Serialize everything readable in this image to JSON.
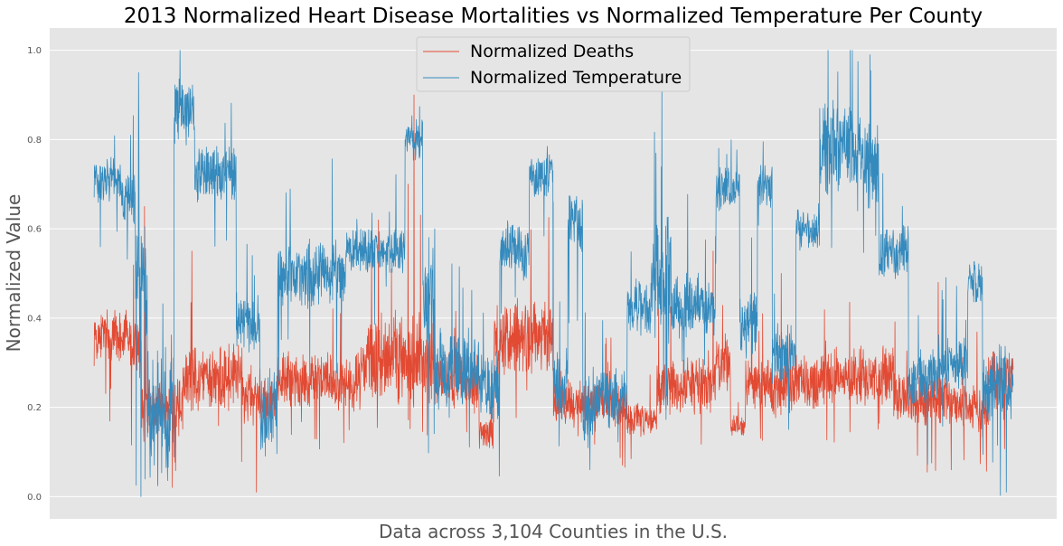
{
  "chart_data": {
    "type": "line",
    "title": "2013 Normalized Heart Disease Mortalities vs Normalized Temperature Per County",
    "xlabel": "Data across 3,104 Counties in the U.S.",
    "ylabel": "Normalized Value",
    "ylim": [
      -0.05,
      1.05
    ],
    "xlim": [
      -150,
      3250
    ],
    "n_points": 3104,
    "yticks": [
      "0.0",
      "0.2",
      "0.4",
      "0.6",
      "0.8",
      "1.0"
    ],
    "grid": true,
    "legend_position": "upper center",
    "style": "ggplot",
    "series": [
      {
        "name": "Normalized Deaths",
        "color": "#E24A33",
        "segments": [
          {
            "x": [
              0,
              120
            ],
            "level": 0.36,
            "noise": 0.05
          },
          {
            "x": [
              120,
              160
            ],
            "level": 0.33,
            "noise": 0.06
          },
          {
            "x": [
              160,
              300
            ],
            "level": 0.2,
            "noise": 0.05
          },
          {
            "x": [
              300,
              500
            ],
            "level": 0.27,
            "noise": 0.06
          },
          {
            "x": [
              500,
              620
            ],
            "level": 0.22,
            "noise": 0.05
          },
          {
            "x": [
              620,
              900
            ],
            "level": 0.26,
            "noise": 0.05
          },
          {
            "x": [
              900,
              1150
            ],
            "level": 0.31,
            "noise": 0.08
          },
          {
            "x": [
              1150,
              1300
            ],
            "level": 0.26,
            "noise": 0.05
          },
          {
            "x": [
              1300,
              1350
            ],
            "level": 0.14,
            "noise": 0.03
          },
          {
            "x": [
              1350,
              1550
            ],
            "level": 0.35,
            "noise": 0.07
          },
          {
            "x": [
              1550,
              1800
            ],
            "level": 0.21,
            "noise": 0.04
          },
          {
            "x": [
              1800,
              1900
            ],
            "level": 0.17,
            "noise": 0.03
          },
          {
            "x": [
              1900,
              2100
            ],
            "level": 0.25,
            "noise": 0.05
          },
          {
            "x": [
              2100,
              2150
            ],
            "level": 0.3,
            "noise": 0.05
          },
          {
            "x": [
              2150,
              2200
            ],
            "level": 0.16,
            "noise": 0.02
          },
          {
            "x": [
              2200,
              2450
            ],
            "level": 0.25,
            "noise": 0.05
          },
          {
            "x": [
              2450,
              2700
            ],
            "level": 0.27,
            "noise": 0.05
          },
          {
            "x": [
              2700,
              2900
            ],
            "level": 0.22,
            "noise": 0.05
          },
          {
            "x": [
              2900,
              3020
            ],
            "level": 0.2,
            "noise": 0.04
          },
          {
            "x": [
              3020,
              3104
            ],
            "level": 0.26,
            "noise": 0.05
          }
        ],
        "spikes": [
          [
            170,
            0.65
          ],
          [
            330,
            0.55
          ],
          [
            960,
            0.62
          ],
          [
            1060,
            0.7
          ],
          [
            1080,
            0.9
          ],
          [
            1550,
            0.66
          ],
          [
            2090,
            0.55
          ],
          [
            2220,
            0.58
          ],
          [
            2320,
            0.5
          ],
          [
            2850,
            0.48
          ]
        ]
      },
      {
        "name": "Normalized Temperature",
        "color": "#348ABD",
        "segments": [
          {
            "x": [
              0,
              90
            ],
            "level": 0.71,
            "noise": 0.04
          },
          {
            "x": [
              90,
              140
            ],
            "level": 0.66,
            "noise": 0.05
          },
          {
            "x": [
              140,
              180
            ],
            "level": 0.45,
            "noise": 0.15
          },
          {
            "x": [
              180,
              270
            ],
            "level": 0.18,
            "noise": 0.12
          },
          {
            "x": [
              270,
              340
            ],
            "level": 0.87,
            "noise": 0.06
          },
          {
            "x": [
              340,
              480
            ],
            "level": 0.72,
            "noise": 0.05
          },
          {
            "x": [
              480,
              560
            ],
            "level": 0.39,
            "noise": 0.05
          },
          {
            "x": [
              560,
              620
            ],
            "level": 0.2,
            "noise": 0.08
          },
          {
            "x": [
              620,
              850
            ],
            "level": 0.5,
            "noise": 0.06
          },
          {
            "x": [
              850,
              1050
            ],
            "level": 0.55,
            "noise": 0.04
          },
          {
            "x": [
              1050,
              1110
            ],
            "level": 0.8,
            "noise": 0.04
          },
          {
            "x": [
              1110,
              1150
            ],
            "level": 0.45,
            "noise": 0.12
          },
          {
            "x": [
              1150,
              1300
            ],
            "level": 0.29,
            "noise": 0.07
          },
          {
            "x": [
              1300,
              1370
            ],
            "level": 0.25,
            "noise": 0.06
          },
          {
            "x": [
              1370,
              1470
            ],
            "level": 0.55,
            "noise": 0.05
          },
          {
            "x": [
              1470,
              1550
            ],
            "level": 0.72,
            "noise": 0.04
          },
          {
            "x": [
              1550,
              1600
            ],
            "level": 0.25,
            "noise": 0.06
          },
          {
            "x": [
              1600,
              1650
            ],
            "level": 0.61,
            "noise": 0.06
          },
          {
            "x": [
              1650,
              1700
            ],
            "level": 0.2,
            "noise": 0.07
          },
          {
            "x": [
              1700,
              1800
            ],
            "level": 0.22,
            "noise": 0.05
          },
          {
            "x": [
              1800,
              1880
            ],
            "level": 0.42,
            "noise": 0.05
          },
          {
            "x": [
              1880,
              1950
            ],
            "level": 0.5,
            "noise": 0.12
          },
          {
            "x": [
              1950,
              2040
            ],
            "level": 0.43,
            "noise": 0.06
          },
          {
            "x": [
              2040,
              2100
            ],
            "level": 0.42,
            "noise": 0.05
          },
          {
            "x": [
              2100,
              2180
            ],
            "level": 0.69,
            "noise": 0.04
          },
          {
            "x": [
              2180,
              2240
            ],
            "level": 0.38,
            "noise": 0.06
          },
          {
            "x": [
              2240,
              2290
            ],
            "level": 0.7,
            "noise": 0.04
          },
          {
            "x": [
              2290,
              2370
            ],
            "level": 0.32,
            "noise": 0.05
          },
          {
            "x": [
              2370,
              2450
            ],
            "level": 0.6,
            "noise": 0.04
          },
          {
            "x": [
              2450,
              2600
            ],
            "level": 0.78,
            "noise": 0.08
          },
          {
            "x": [
              2600,
              2650
            ],
            "level": 0.75,
            "noise": 0.08
          },
          {
            "x": [
              2650,
              2750
            ],
            "level": 0.55,
            "noise": 0.05
          },
          {
            "x": [
              2750,
              2850
            ],
            "level": 0.27,
            "noise": 0.05
          },
          {
            "x": [
              2850,
              2950
            ],
            "level": 0.3,
            "noise": 0.05
          },
          {
            "x": [
              2950,
              3000
            ],
            "level": 0.48,
            "noise": 0.04
          },
          {
            "x": [
              3000,
              3104
            ],
            "level": 0.25,
            "noise": 0.07
          }
        ],
        "spikes": [
          [
            150,
            0.95
          ],
          [
            290,
            1.0
          ],
          [
            1150,
            0.6
          ],
          [
            2560,
            1.0
          ],
          [
            2620,
            0.99
          ],
          [
            3080,
            0.01
          ]
        ]
      }
    ]
  }
}
